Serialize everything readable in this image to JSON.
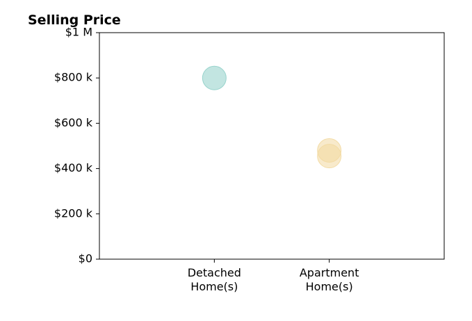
{
  "chart_data": {
    "type": "scatter",
    "title": "Selling Price",
    "xlabel": "",
    "ylabel": "",
    "categories": [
      [
        "Detached",
        "Home(s)"
      ],
      [
        "Apartment",
        "Home(s)"
      ]
    ],
    "xlim": [
      0,
      3
    ],
    "ylim": [
      0,
      1000000
    ],
    "yticks": [
      {
        "value": 0,
        "label": "$0"
      },
      {
        "value": 200000,
        "label": "$200 k"
      },
      {
        "value": 400000,
        "label": "$400 k"
      },
      {
        "value": 600000,
        "label": "$600 k"
      },
      {
        "value": 800000,
        "label": "$800 k"
      },
      {
        "value": 1000000,
        "label": "$1 M"
      }
    ],
    "points": [
      {
        "category": 0,
        "value": 800000,
        "color": "#8fcfc8"
      },
      {
        "category": 1,
        "value": 480000,
        "color": "#f2d9a0"
      },
      {
        "category": 1,
        "value": 455000,
        "color": "#f2d9a0"
      }
    ],
    "grid": false,
    "legend": "none"
  }
}
